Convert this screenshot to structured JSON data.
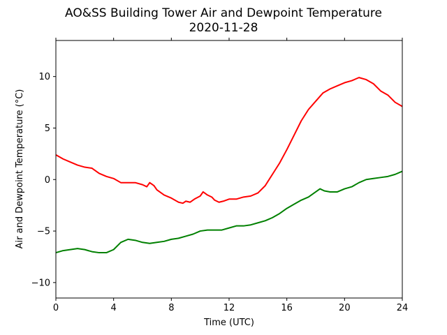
{
  "chart_data": {
    "type": "line",
    "title": "AO&SS Building Tower Air and Dewpoint Temperature",
    "subtitle": "2020-11-28",
    "xlabel": "Time (UTC)",
    "ylabel": "Air and Dewpoint Temperature (°C)",
    "xlim": [
      0,
      24
    ],
    "ylim": [
      -11.5,
      13.5
    ],
    "xticks": [
      0,
      4,
      8,
      12,
      16,
      20,
      24
    ],
    "yticks": [
      -10,
      -5,
      0,
      5,
      10
    ],
    "grid": false,
    "legend": "none",
    "series": [
      {
        "color": "#ff0000",
        "x": [
          0,
          0.5,
          1,
          1.5,
          2,
          2.5,
          3,
          3.5,
          4,
          4.5,
          5,
          5.5,
          6,
          6.3,
          6.5,
          6.8,
          7,
          7.5,
          8,
          8.5,
          8.8,
          9,
          9.3,
          9.6,
          10,
          10.2,
          10.5,
          10.8,
          11,
          11.3,
          11.6,
          12,
          12.5,
          13,
          13.5,
          14,
          14.5,
          15,
          15.5,
          16,
          16.5,
          17,
          17.5,
          18,
          18.5,
          19,
          19.5,
          20,
          20.5,
          21,
          21.5,
          22,
          22.5,
          23,
          23.5,
          24
        ],
        "values": [
          2.4,
          2.0,
          1.7,
          1.4,
          1.2,
          1.1,
          0.6,
          0.3,
          0.1,
          -0.3,
          -0.3,
          -0.3,
          -0.5,
          -0.7,
          -0.3,
          -0.6,
          -1.0,
          -1.5,
          -1.8,
          -2.2,
          -2.3,
          -2.1,
          -2.2,
          -1.9,
          -1.6,
          -1.2,
          -1.5,
          -1.7,
          -2.0,
          -2.2,
          -2.1,
          -1.9,
          -1.9,
          -1.7,
          -1.6,
          -1.3,
          -0.6,
          0.5,
          1.6,
          2.9,
          4.3,
          5.7,
          6.8,
          7.6,
          8.4,
          8.8,
          9.1,
          9.4,
          9.6,
          9.9,
          9.7,
          9.3,
          8.6,
          8.2,
          7.5,
          7.1
        ]
      },
      {
        "color": "#008000",
        "x": [
          0,
          0.5,
          1,
          1.5,
          2,
          2.5,
          3,
          3.5,
          4,
          4.5,
          5,
          5.5,
          6,
          6.5,
          7,
          7.5,
          8,
          8.5,
          9,
          9.5,
          10,
          10.5,
          11,
          11.5,
          12,
          12.5,
          13,
          13.5,
          14,
          14.5,
          15,
          15.5,
          16,
          16.5,
          17,
          17.5,
          18,
          18.3,
          18.6,
          19,
          19.5,
          20,
          20.5,
          21,
          21.5,
          22,
          22.5,
          23,
          23.5,
          24
        ],
        "values": [
          -7.1,
          -6.9,
          -6.8,
          -6.7,
          -6.8,
          -7.0,
          -7.1,
          -7.1,
          -6.8,
          -6.1,
          -5.8,
          -5.9,
          -6.1,
          -6.2,
          -6.1,
          -6.0,
          -5.8,
          -5.7,
          -5.5,
          -5.3,
          -5.0,
          -4.9,
          -4.9,
          -4.9,
          -4.7,
          -4.5,
          -4.5,
          -4.4,
          -4.2,
          -4.0,
          -3.7,
          -3.3,
          -2.8,
          -2.4,
          -2.0,
          -1.7,
          -1.2,
          -0.9,
          -1.1,
          -1.2,
          -1.2,
          -0.9,
          -0.7,
          -0.3,
          0.0,
          0.1,
          0.2,
          0.3,
          0.5,
          0.8
        ]
      }
    ]
  }
}
